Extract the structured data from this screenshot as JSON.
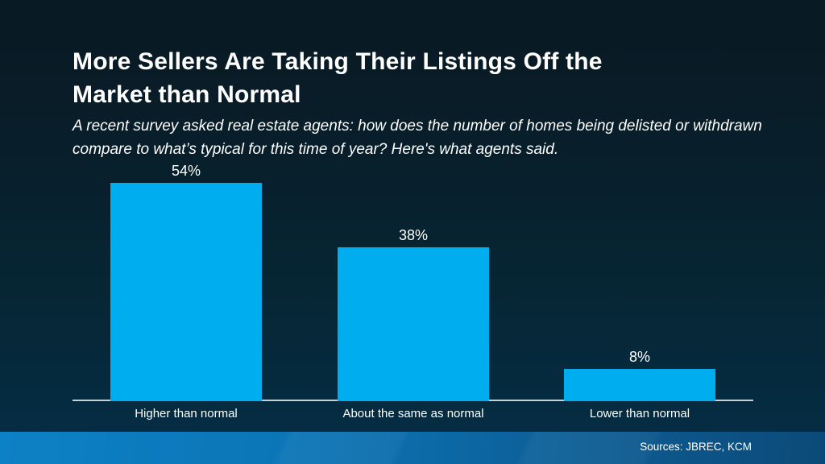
{
  "slide": {
    "title": "More Sellers Are Taking Their Listings Off the Market than Normal",
    "subtitle": "A recent survey asked real estate agents: how does the number of homes being delisted or withdrawn compare to what’s typical for this time of year? Here's what agents said.",
    "footer": {
      "sources_label": "Sources: JBREC, KCM"
    }
  },
  "colors": {
    "background_top": "#081a23",
    "background_bottom": "#052d44",
    "bar": "#00adee",
    "axis_line": "#c6d0d7",
    "footer_gradient_left": "#0d81c6",
    "footer_gradient_right": "#0b4a78",
    "text": "#ffffff"
  },
  "chart_data": {
    "type": "bar",
    "categories": [
      "Higher than normal",
      "About the same as normal",
      "Lower than normal"
    ],
    "values": [
      54,
      38,
      8
    ],
    "value_labels": [
      "54%",
      "38%",
      "8%"
    ],
    "title": "More Sellers Are Taking Their Listings Off the Market than Normal",
    "xlabel": "",
    "ylabel": "",
    "ylim": [
      0,
      60
    ],
    "grid": false,
    "legend": false,
    "bar_color": "#00adee"
  }
}
